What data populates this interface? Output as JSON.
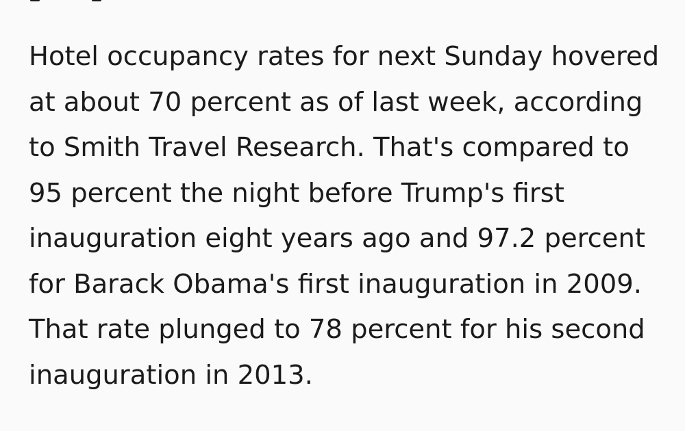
{
  "article": {
    "lines": [
      "Hotel occupancy rates for next Sunday hovered",
      "at about 70 percent as of last week, according",
      "to Smith Travel Research. That's compared to",
      "95 percent the night before Trump's first",
      "inauguration eight years ago and 97.2 percent",
      "for Barack Obama's first inauguration in 2009.",
      "That rate plunged to 78 percent for his second",
      "inauguration in 2013."
    ]
  }
}
